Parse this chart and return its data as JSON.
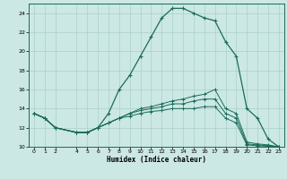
{
  "xlabel": "Humidex (Indice chaleur)",
  "bg_color": "#cce8e4",
  "line_color": "#1a6b5a",
  "grid_color": "#aacfcc",
  "xlim": [
    -0.5,
    23.5
  ],
  "ylim": [
    10,
    25
  ],
  "xticks": [
    0,
    1,
    2,
    4,
    5,
    6,
    7,
    8,
    9,
    10,
    11,
    12,
    13,
    14,
    15,
    16,
    17,
    18,
    19,
    20,
    21,
    22,
    23
  ],
  "yticks": [
    10,
    12,
    14,
    16,
    18,
    20,
    22,
    24
  ],
  "line1_x": [
    0,
    1,
    2,
    4,
    5,
    6,
    7,
    8,
    9,
    10,
    11,
    12,
    13,
    14,
    15,
    16,
    17,
    18,
    19,
    20,
    21,
    22,
    23
  ],
  "line1_y": [
    13.5,
    13.0,
    12.0,
    11.5,
    11.5,
    12.0,
    13.5,
    16.0,
    17.5,
    19.5,
    21.5,
    23.5,
    24.5,
    24.5,
    24.0,
    23.5,
    23.2,
    21.0,
    19.5,
    14.0,
    13.0,
    10.8,
    10.0
  ],
  "line2_x": [
    0,
    1,
    2,
    4,
    5,
    6,
    7,
    8,
    9,
    10,
    11,
    12,
    13,
    14,
    15,
    16,
    17,
    18,
    19,
    20,
    21,
    22,
    23
  ],
  "line2_y": [
    13.5,
    13.0,
    12.0,
    11.5,
    11.5,
    12.0,
    12.5,
    13.0,
    13.5,
    14.0,
    14.2,
    14.5,
    14.8,
    15.0,
    15.3,
    15.5,
    16.0,
    14.0,
    13.5,
    10.5,
    10.3,
    10.2,
    10.0
  ],
  "line3_x": [
    0,
    1,
    2,
    4,
    5,
    6,
    7,
    8,
    9,
    10,
    11,
    12,
    13,
    14,
    15,
    16,
    17,
    18,
    19,
    20,
    21,
    22,
    23
  ],
  "line3_y": [
    13.5,
    13.0,
    12.0,
    11.5,
    11.5,
    12.0,
    12.5,
    13.0,
    13.5,
    13.8,
    14.0,
    14.2,
    14.5,
    14.5,
    14.8,
    15.0,
    15.0,
    13.5,
    13.0,
    10.3,
    10.2,
    10.1,
    10.0
  ],
  "line4_x": [
    0,
    1,
    2,
    4,
    5,
    6,
    7,
    8,
    9,
    10,
    11,
    12,
    13,
    14,
    15,
    16,
    17,
    18,
    19,
    20,
    21,
    22,
    23
  ],
  "line4_y": [
    13.5,
    13.0,
    12.0,
    11.5,
    11.5,
    12.0,
    12.5,
    13.0,
    13.2,
    13.5,
    13.7,
    13.8,
    14.0,
    14.0,
    14.0,
    14.2,
    14.2,
    13.0,
    12.5,
    10.2,
    10.1,
    10.05,
    10.0
  ]
}
